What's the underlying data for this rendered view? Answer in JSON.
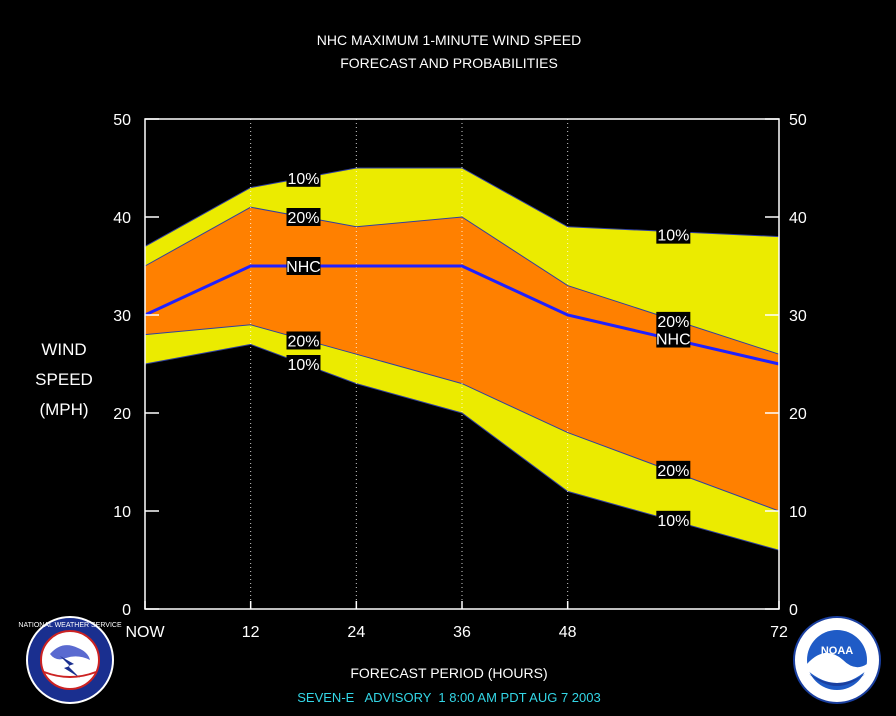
{
  "colors": {
    "background": "#000000",
    "band_10": "#ebeb00",
    "band_20": "#ff8000",
    "nhc_line": "#2020ff",
    "frame": "#ffffff",
    "advisory_text": "#33d6e6"
  },
  "chart_data": {
    "type": "area",
    "title": "NHC MAXIMUM 1-MINUTE WIND SPEED",
    "subtitle": "FORECAST AND PROBABILITIES",
    "xlabel": "FORECAST PERIOD (HOURS)",
    "ylabel_lines": [
      "WIND",
      "SPEED",
      "(MPH)"
    ],
    "xlim": [
      0,
      72
    ],
    "ylim": [
      0,
      50
    ],
    "x_ticks": [
      {
        "x": 0,
        "label": "NOW"
      },
      {
        "x": 12,
        "label": "12"
      },
      {
        "x": 24,
        "label": "24"
      },
      {
        "x": 36,
        "label": "36"
      },
      {
        "x": 48,
        "label": "48"
      },
      {
        "x": 72,
        "label": "72"
      }
    ],
    "y_ticks": [
      0,
      10,
      20,
      30,
      40,
      50
    ],
    "x": [
      0,
      12,
      24,
      36,
      48,
      72
    ],
    "series": [
      {
        "name": "10%",
        "role": "upper_10",
        "values": [
          37,
          43,
          45,
          45,
          39,
          38
        ]
      },
      {
        "name": "20%",
        "role": "upper_20",
        "values": [
          35,
          41,
          39,
          40,
          33,
          26
        ]
      },
      {
        "name": "NHC",
        "role": "forecast",
        "values": [
          30,
          35,
          35,
          35,
          30,
          25
        ]
      },
      {
        "name": "20%",
        "role": "lower_20",
        "values": [
          28,
          29,
          26,
          23,
          18,
          10
        ]
      },
      {
        "name": "10%",
        "role": "lower_10",
        "values": [
          25,
          27,
          23,
          20,
          12,
          6
        ]
      }
    ],
    "annotations": [
      {
        "text": "10%",
        "x": 18,
        "y": 44
      },
      {
        "text": "20%",
        "x": 18,
        "y": 40
      },
      {
        "text": "NHC",
        "x": 18,
        "y": 35
      },
      {
        "text": "20%",
        "x": 18,
        "y": 27.4
      },
      {
        "text": "10%",
        "x": 18,
        "y": 25
      },
      {
        "text": "10%",
        "x": 60,
        "y": 38.2
      },
      {
        "text": "20%",
        "x": 60,
        "y": 29.4
      },
      {
        "text": "NHC",
        "x": 60,
        "y": 27.6
      },
      {
        "text": "20%",
        "x": 60,
        "y": 14.2
      },
      {
        "text": "10%",
        "x": 60,
        "y": 9.1
      }
    ]
  },
  "advisory": "SEVEN-E   ADVISORY  1 8:00 AM PDT AUG 7 2003",
  "logos": {
    "left": {
      "icon": "nws-logo-icon",
      "text": "NATIONAL WEATHER SERVICE"
    },
    "right": {
      "icon": "noaa-logo-icon",
      "text": "NOAA"
    }
  }
}
